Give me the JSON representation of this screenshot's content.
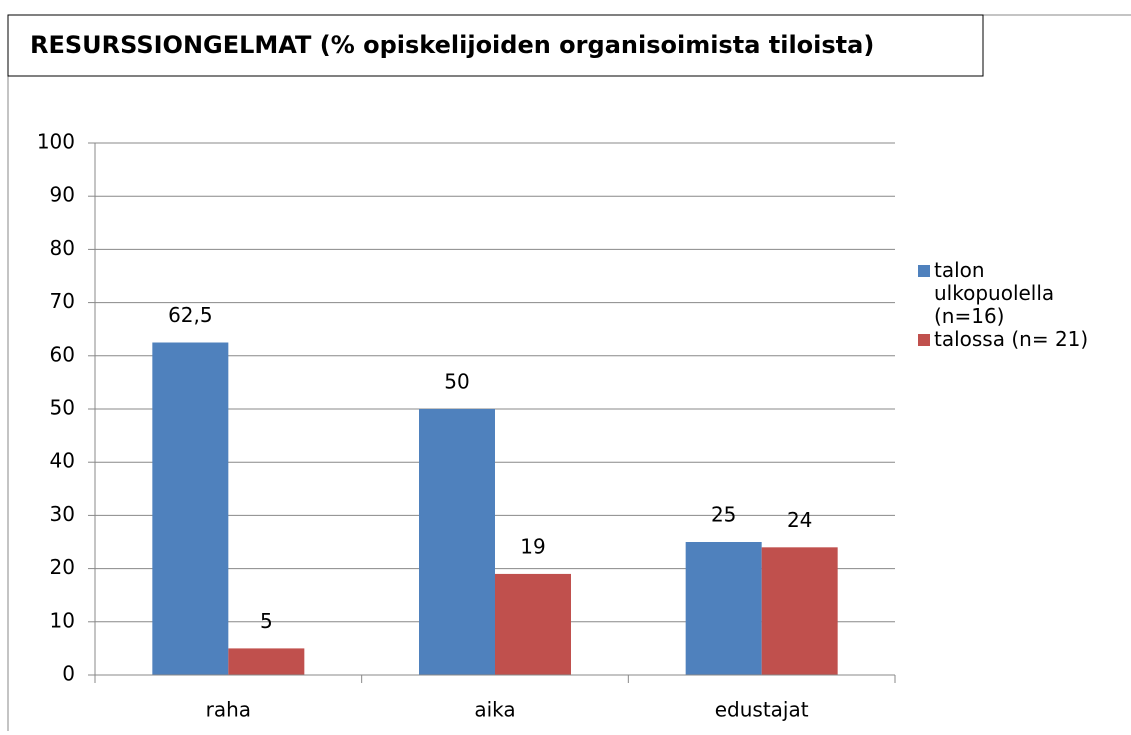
{
  "chart_data": {
    "type": "bar",
    "title": "RESURSSIONGELMAT (% opiskelijoiden organisoimista tiloista)",
    "categories": [
      "raha",
      "aika",
      "edustajat"
    ],
    "series": [
      {
        "name": "talon ulkopuolella (n=16)",
        "color": "#4f81bd",
        "values": [
          62.5,
          50,
          25
        ],
        "value_labels": [
          "62,5",
          "50",
          "25"
        ]
      },
      {
        "name": "talossa (n= 21)",
        "color": "#c0504d",
        "values": [
          5,
          19,
          24
        ],
        "value_labels": [
          "5",
          "19",
          "24"
        ]
      }
    ],
    "ylim": [
      0,
      100
    ],
    "yticks": [
      0,
      10,
      20,
      30,
      40,
      50,
      60,
      70,
      80,
      90,
      100
    ],
    "grid": true,
    "legend": "right"
  }
}
